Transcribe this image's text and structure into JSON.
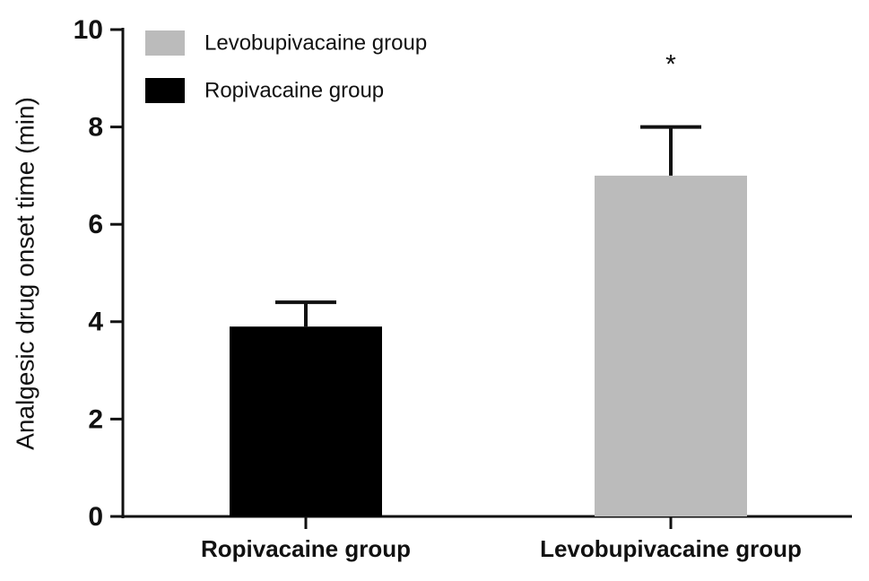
{
  "chart_data": {
    "type": "bar",
    "y_label": "Analgesic drug onset time (min)",
    "categories": [
      "Ropivacaine group",
      "Levobupivacaine group"
    ],
    "series": [
      {
        "name": "Levobupivacaine group",
        "color": "#bbbbbb",
        "values": [
          null,
          7.0
        ],
        "errors": [
          null,
          1.0
        ],
        "annotation": "*"
      },
      {
        "name": "Ropivacaine group",
        "color": "#000000",
        "values": [
          3.9,
          null
        ],
        "errors": [
          0.5,
          null
        ]
      }
    ],
    "ylim": [
      0,
      10
    ],
    "yticks": [
      0,
      2,
      4,
      6,
      8,
      10
    ],
    "grid": false,
    "legend": "top-left"
  }
}
